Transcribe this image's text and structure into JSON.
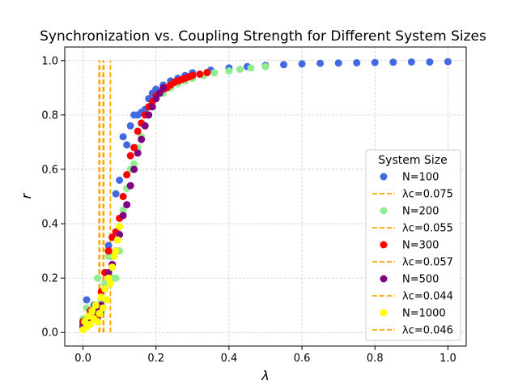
{
  "chart_data": {
    "type": "scatter",
    "title": "Synchronization vs. Coupling Strength for Different System Sizes",
    "xlabel": "λ",
    "ylabel": "r",
    "xlim": [
      -0.05,
      1.05
    ],
    "ylim": [
      -0.05,
      1.05
    ],
    "xticks": [
      "0.0",
      "0.2",
      "0.4",
      "0.6",
      "0.8",
      "1.0"
    ],
    "yticks": [
      "0.0",
      "0.2",
      "0.4",
      "0.6",
      "0.8",
      "1.0"
    ],
    "grid": true,
    "legend": {
      "title": "System Size",
      "placement": "lower-right"
    },
    "series": [
      {
        "name": "N=100",
        "color": "#4169e1",
        "critical_label": "λc=0.075",
        "lambda_c": 0.075,
        "x_max": 1.0,
        "points": [
          [
            0.0,
            0.03
          ],
          [
            0.01,
            0.12
          ],
          [
            0.02,
            0.07
          ],
          [
            0.03,
            0.1
          ],
          [
            0.04,
            0.05
          ],
          [
            0.05,
            0.08
          ],
          [
            0.06,
            0.18
          ],
          [
            0.07,
            0.32
          ],
          [
            0.08,
            0.28
          ],
          [
            0.09,
            0.51
          ],
          [
            0.1,
            0.56
          ],
          [
            0.11,
            0.72
          ],
          [
            0.12,
            0.69
          ],
          [
            0.13,
            0.76
          ],
          [
            0.14,
            0.8
          ],
          [
            0.15,
            0.8
          ],
          [
            0.16,
            0.81
          ],
          [
            0.17,
            0.82
          ],
          [
            0.18,
            0.86
          ],
          [
            0.19,
            0.88
          ],
          [
            0.2,
            0.895
          ],
          [
            0.22,
            0.91
          ],
          [
            0.24,
            0.925
          ],
          [
            0.26,
            0.935
          ],
          [
            0.28,
            0.945
          ],
          [
            0.3,
            0.955
          ],
          [
            0.35,
            0.965
          ],
          [
            0.4,
            0.973
          ],
          [
            0.45,
            0.978
          ],
          [
            0.5,
            0.982
          ],
          [
            0.55,
            0.985
          ],
          [
            0.6,
            0.988
          ],
          [
            0.65,
            0.99
          ],
          [
            0.7,
            0.991
          ],
          [
            0.75,
            0.992
          ],
          [
            0.8,
            0.993
          ],
          [
            0.85,
            0.994
          ],
          [
            0.9,
            0.995
          ],
          [
            0.95,
            0.995
          ],
          [
            1.0,
            0.996
          ]
        ]
      },
      {
        "name": "N=200",
        "color": "#90ee90",
        "critical_label": "λc=0.055",
        "lambda_c": 0.055,
        "x_max": 0.5,
        "points": [
          [
            0.0,
            0.05
          ],
          [
            0.01,
            0.09
          ],
          [
            0.02,
            0.04
          ],
          [
            0.03,
            0.06
          ],
          [
            0.04,
            0.2
          ],
          [
            0.05,
            0.12
          ],
          [
            0.06,
            0.18
          ],
          [
            0.07,
            0.28
          ],
          [
            0.08,
            0.2
          ],
          [
            0.09,
            0.2
          ],
          [
            0.1,
            0.3
          ],
          [
            0.11,
            0.45
          ],
          [
            0.12,
            0.53
          ],
          [
            0.13,
            0.6
          ],
          [
            0.14,
            0.62
          ],
          [
            0.15,
            0.68
          ],
          [
            0.16,
            0.72
          ],
          [
            0.17,
            0.76
          ],
          [
            0.18,
            0.8
          ],
          [
            0.19,
            0.83
          ],
          [
            0.2,
            0.86
          ],
          [
            0.22,
            0.88
          ],
          [
            0.24,
            0.9
          ],
          [
            0.26,
            0.915
          ],
          [
            0.28,
            0.925
          ],
          [
            0.3,
            0.935
          ],
          [
            0.33,
            0.945
          ],
          [
            0.36,
            0.955
          ],
          [
            0.4,
            0.962
          ],
          [
            0.43,
            0.968
          ],
          [
            0.46,
            0.973
          ],
          [
            0.5,
            0.978
          ]
        ]
      },
      {
        "name": "N=300",
        "color": "#ff0000",
        "critical_label": "λc=0.057",
        "lambda_c": 0.057,
        "x_max": 0.34,
        "points": [
          [
            0.0,
            0.04
          ],
          [
            0.02,
            0.08
          ],
          [
            0.04,
            0.06
          ],
          [
            0.05,
            0.15
          ],
          [
            0.06,
            0.22
          ],
          [
            0.07,
            0.3
          ],
          [
            0.08,
            0.35
          ],
          [
            0.09,
            0.37
          ],
          [
            0.1,
            0.42
          ],
          [
            0.11,
            0.5
          ],
          [
            0.12,
            0.58
          ],
          [
            0.13,
            0.65
          ],
          [
            0.14,
            0.68
          ],
          [
            0.15,
            0.74
          ],
          [
            0.16,
            0.77
          ],
          [
            0.17,
            0.8
          ],
          [
            0.18,
            0.83
          ],
          [
            0.19,
            0.85
          ],
          [
            0.2,
            0.87
          ],
          [
            0.21,
            0.88
          ],
          [
            0.22,
            0.895
          ],
          [
            0.23,
            0.9
          ],
          [
            0.24,
            0.91
          ],
          [
            0.25,
            0.92
          ],
          [
            0.26,
            0.925
          ],
          [
            0.27,
            0.93
          ],
          [
            0.28,
            0.935
          ],
          [
            0.29,
            0.94
          ],
          [
            0.3,
            0.945
          ],
          [
            0.32,
            0.95
          ],
          [
            0.34,
            0.956
          ]
        ]
      },
      {
        "name": "N=500",
        "color": "#800080",
        "critical_label": "λc=0.044",
        "lambda_c": 0.044,
        "x_max": 0.22,
        "points": [
          [
            0.0,
            0.02
          ],
          [
            0.02,
            0.05
          ],
          [
            0.04,
            0.08
          ],
          [
            0.05,
            0.1
          ],
          [
            0.06,
            0.16
          ],
          [
            0.07,
            0.22
          ],
          [
            0.08,
            0.25
          ],
          [
            0.09,
            0.3
          ],
          [
            0.1,
            0.36
          ],
          [
            0.11,
            0.43
          ],
          [
            0.12,
            0.47
          ],
          [
            0.13,
            0.54
          ],
          [
            0.14,
            0.6
          ],
          [
            0.15,
            0.66
          ],
          [
            0.16,
            0.71
          ],
          [
            0.17,
            0.76
          ],
          [
            0.18,
            0.8
          ],
          [
            0.19,
            0.83
          ],
          [
            0.2,
            0.86
          ],
          [
            0.21,
            0.88
          ],
          [
            0.22,
            0.9
          ]
        ]
      },
      {
        "name": "N=1000",
        "color": "#ffff00",
        "critical_label": "λc=0.046",
        "lambda_c": 0.046,
        "x_max": 0.1,
        "points": [
          [
            0.0,
            0.01
          ],
          [
            0.005,
            0.04
          ],
          [
            0.01,
            0.02
          ],
          [
            0.015,
            0.06
          ],
          [
            0.02,
            0.03
          ],
          [
            0.025,
            0.08
          ],
          [
            0.03,
            0.05
          ],
          [
            0.035,
            0.1
          ],
          [
            0.04,
            0.04
          ],
          [
            0.045,
            0.07
          ],
          [
            0.05,
            0.13
          ],
          [
            0.055,
            0.09
          ],
          [
            0.06,
            0.16
          ],
          [
            0.065,
            0.12
          ],
          [
            0.07,
            0.2
          ],
          [
            0.075,
            0.18
          ],
          [
            0.08,
            0.24
          ],
          [
            0.085,
            0.28
          ],
          [
            0.09,
            0.3
          ],
          [
            0.095,
            0.34
          ],
          [
            0.1,
            0.39
          ]
        ]
      }
    ]
  }
}
